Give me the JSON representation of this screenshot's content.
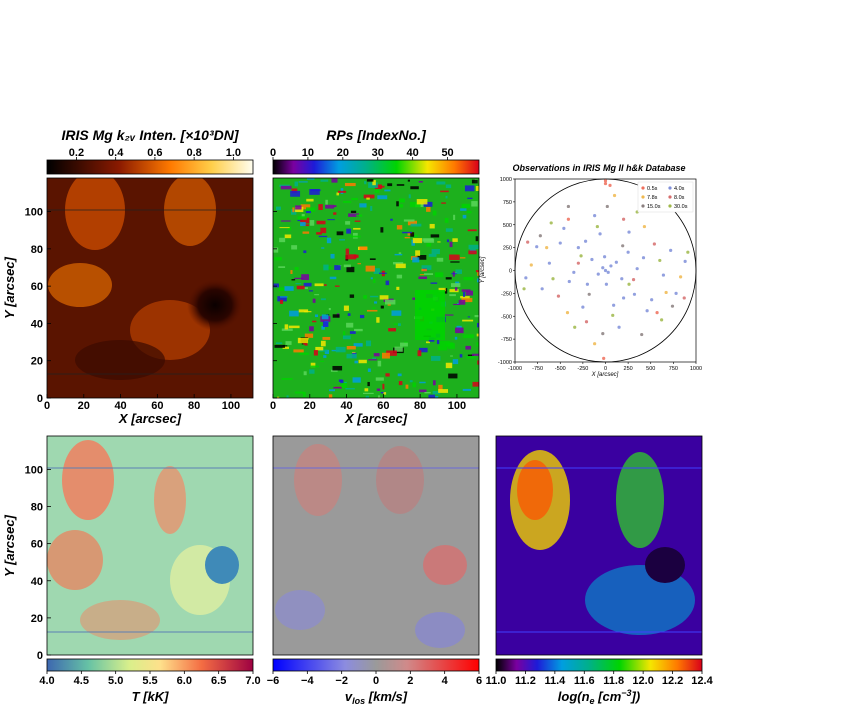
{
  "chart_data": [
    {
      "type": "heatmap",
      "title": "IRIS Mg k₂ᵥ Inten. [×10³DN]",
      "colorbar": {
        "ticks": [
          "0.2",
          "0.4",
          "0.6",
          "0.8",
          "1.0"
        ],
        "colormap": "afmhot"
      },
      "xlabel": "X [arcsec]",
      "ylabel": "Y [arcsec]",
      "xticks": [
        "0",
        "20",
        "40",
        "60",
        "80",
        "100"
      ],
      "yticks": [
        "0",
        "20",
        "40",
        "60",
        "80",
        "100"
      ],
      "xlim": [
        0,
        112
      ],
      "ylim": [
        0,
        118
      ]
    },
    {
      "type": "heatmap",
      "title": "RPs [IndexNo.]",
      "colorbar": {
        "ticks": [
          "0",
          "10",
          "20",
          "30",
          "40",
          "50"
        ],
        "colormap": "nipy_spectral"
      },
      "xlabel": "X [arcsec]",
      "xticks": [
        "0",
        "20",
        "40",
        "60",
        "80",
        "100"
      ],
      "xlim": [
        0,
        112
      ],
      "ylim": [
        0,
        118
      ]
    },
    {
      "type": "scatter",
      "title": "Observations in IRIS Mg II h&k Database",
      "xlabel": "X [arcsec]",
      "ylabel": "Y [arcsec]",
      "xticks": [
        "-1000",
        "-750",
        "-500",
        "-250",
        "0",
        "250",
        "500",
        "750",
        "1000"
      ],
      "yticks": [
        "1000",
        "750",
        "500",
        "250",
        "0",
        "-250",
        "-500",
        "-750",
        "-1000"
      ],
      "xlim": [
        -1000,
        1000
      ],
      "ylim": [
        -1000,
        1000
      ],
      "legend": "top-right",
      "series": [
        {
          "name": "0.5s",
          "color": "#ef6f5c",
          "points": [
            [
              0,
              980
            ],
            [
              0,
              950
            ],
            [
              -20,
              -960
            ],
            [
              50,
              930
            ],
            [
              -410,
              560
            ],
            [
              570,
              -460
            ]
          ]
        },
        {
          "name": "4.0s",
          "color": "#7f8fd9",
          "points": [
            [
              0,
              0
            ],
            [
              -30,
              30
            ],
            [
              30,
              -20
            ],
            [
              60,
              50
            ],
            [
              -80,
              -40
            ],
            [
              120,
              90
            ],
            [
              -150,
              120
            ],
            [
              180,
              -90
            ],
            [
              -200,
              -150
            ],
            [
              250,
              200
            ],
            [
              -300,
              250
            ],
            [
              320,
              -260
            ],
            [
              -400,
              -120
            ],
            [
              420,
              140
            ],
            [
              -500,
              300
            ],
            [
              510,
              -320
            ],
            [
              -620,
              80
            ],
            [
              640,
              -50
            ],
            [
              -250,
              -400
            ],
            [
              260,
              420
            ],
            [
              -120,
              600
            ],
            [
              150,
              -620
            ],
            [
              -700,
              -200
            ],
            [
              720,
              220
            ],
            [
              880,
              100
            ],
            [
              -880,
              -80
            ],
            [
              90,
              -380
            ],
            [
              -60,
              400
            ],
            [
              350,
              20
            ],
            [
              -350,
              -20
            ],
            [
              10,
              -150
            ],
            [
              -10,
              150
            ],
            [
              200,
              -300
            ],
            [
              -220,
              320
            ],
            [
              460,
              -440
            ],
            [
              -460,
              460
            ],
            [
              780,
              -250
            ],
            [
              -760,
              260
            ]
          ]
        },
        {
          "name": "7.8s",
          "color": "#f0b94f",
          "points": [
            [
              -650,
              250
            ],
            [
              670,
              -240
            ],
            [
              -420,
              -460
            ],
            [
              430,
              480
            ],
            [
              100,
              820
            ],
            [
              -120,
              -800
            ],
            [
              -820,
              60
            ],
            [
              830,
              -70
            ]
          ]
        },
        {
          "name": "8.0s",
          "color": "#d66d6d",
          "points": [
            [
              -300,
              80
            ],
            [
              310,
              -100
            ],
            [
              -520,
              -280
            ],
            [
              540,
              290
            ],
            [
              200,
              560
            ],
            [
              -210,
              -560
            ],
            [
              870,
              -300
            ],
            [
              -860,
              310
            ]
          ]
        },
        {
          "name": "15.0s",
          "color": "#8a7f7f",
          "points": [
            [
              -720,
              380
            ],
            [
              740,
              -390
            ],
            [
              -180,
              -260
            ],
            [
              190,
              270
            ],
            [
              400,
              -700
            ],
            [
              -410,
              700
            ],
            [
              20,
              700
            ],
            [
              -30,
              -690
            ]
          ]
        },
        {
          "name": "30.0s",
          "color": "#9fb84a",
          "points": [
            [
              -580,
              -90
            ],
            [
              600,
              110
            ],
            [
              -90,
              480
            ],
            [
              80,
              -490
            ],
            [
              -340,
              -620
            ],
            [
              350,
              640
            ],
            [
              -900,
              -200
            ],
            [
              910,
              200
            ],
            [
              -600,
              520
            ],
            [
              620,
              -540
            ],
            [
              260,
              -150
            ],
            [
              -270,
              160
            ]
          ]
        }
      ]
    },
    {
      "type": "heatmap",
      "colorbar": {
        "ticks": [
          "4.0",
          "4.5",
          "5.0",
          "5.5",
          "6.0",
          "6.5",
          "7.0"
        ],
        "colormap": "Spectral_r",
        "label": "T [kK]"
      },
      "ylabel": "Y [arcsec]",
      "yticks": [
        "0",
        "20",
        "40",
        "60",
        "80",
        "100"
      ],
      "xlim": [
        0,
        112
      ],
      "ylim": [
        0,
        118
      ]
    },
    {
      "type": "heatmap",
      "colorbar": {
        "ticks": [
          "−6",
          "−4",
          "−2",
          "0",
          "2",
          "4",
          "6"
        ],
        "colormap": "bwr",
        "label": "v_los [km/s]"
      },
      "xlim": [
        0,
        112
      ],
      "ylim": [
        0,
        118
      ]
    },
    {
      "type": "heatmap",
      "colorbar": {
        "ticks": [
          "11.0",
          "11.2",
          "11.4",
          "11.6",
          "11.8",
          "12.0",
          "12.2",
          "12.4"
        ],
        "colormap": "nipy_spectral",
        "label": "log(n_e [cm⁻³])"
      },
      "xlim": [
        0,
        112
      ],
      "ylim": [
        0,
        118
      ]
    }
  ]
}
